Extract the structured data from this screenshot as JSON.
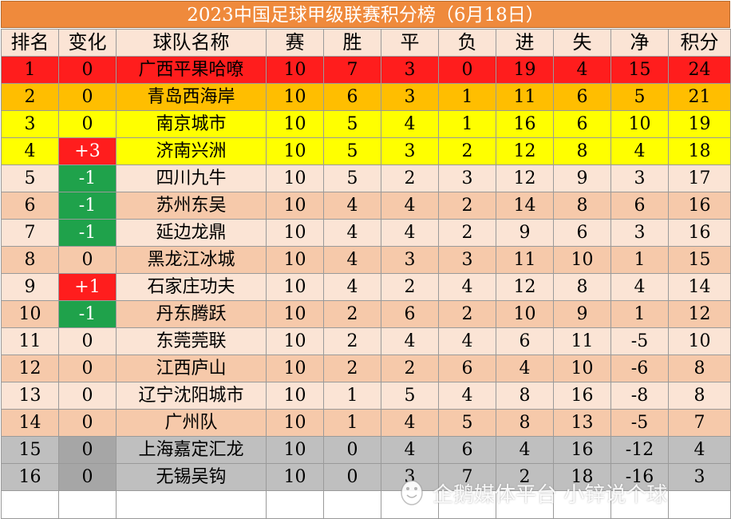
{
  "title": "2023中国足球甲级联赛积分榜（6月18日）",
  "headers": [
    "排名",
    "变化",
    "球队名称",
    "赛",
    "胜",
    "平",
    "负",
    "进",
    "失",
    "净",
    "积分"
  ],
  "rows": [
    {
      "rank": "1",
      "change": "0",
      "team": "广西平果哈嘹",
      "played": "10",
      "won": "7",
      "drawn": "3",
      "lost": "0",
      "gf": "19",
      "ga": "4",
      "gd": "15",
      "pts": "24",
      "row_color": "#ff1d1d",
      "change_color": "#ff1d1d"
    },
    {
      "rank": "2",
      "change": "0",
      "team": "青岛西海岸",
      "played": "10",
      "won": "6",
      "drawn": "3",
      "lost": "1",
      "gf": "11",
      "ga": "6",
      "gd": "5",
      "pts": "21",
      "row_color": "#ffbe00",
      "change_color": "#ffbe00"
    },
    {
      "rank": "3",
      "change": "0",
      "team": "南京城市",
      "played": "10",
      "won": "5",
      "drawn": "4",
      "lost": "1",
      "gf": "16",
      "ga": "6",
      "gd": "10",
      "pts": "19",
      "row_color": "#ffff00",
      "change_color": "#ffff00"
    },
    {
      "rank": "4",
      "change": "+3",
      "team": "济南兴洲",
      "played": "10",
      "won": "5",
      "drawn": "3",
      "lost": "2",
      "gf": "12",
      "ga": "8",
      "gd": "4",
      "pts": "18",
      "row_color": "#ffff00",
      "change_color": "#ff1d1d"
    },
    {
      "rank": "5",
      "change": "-1",
      "team": "四川九牛",
      "played": "10",
      "won": "5",
      "drawn": "2",
      "lost": "3",
      "gf": "12",
      "ga": "9",
      "gd": "3",
      "pts": "17",
      "row_color": "#fbe4d5",
      "change_color": "#1fa24b"
    },
    {
      "rank": "6",
      "change": "-1",
      "team": "苏州东吴",
      "played": "10",
      "won": "4",
      "drawn": "4",
      "lost": "2",
      "gf": "14",
      "ga": "8",
      "gd": "6",
      "pts": "16",
      "row_color": "#f6c9aa",
      "change_color": "#1fa24b"
    },
    {
      "rank": "7",
      "change": "-1",
      "team": "延边龙鼎",
      "played": "10",
      "won": "4",
      "drawn": "4",
      "lost": "2",
      "gf": "9",
      "ga": "6",
      "gd": "3",
      "pts": "16",
      "row_color": "#fbe4d5",
      "change_color": "#1fa24b"
    },
    {
      "rank": "8",
      "change": "0",
      "team": "黑龙江冰城",
      "played": "10",
      "won": "4",
      "drawn": "3",
      "lost": "3",
      "gf": "11",
      "ga": "10",
      "gd": "1",
      "pts": "15",
      "row_color": "#f6c9aa",
      "change_color": "#f6c9aa"
    },
    {
      "rank": "9",
      "change": "+1",
      "team": "石家庄功夫",
      "played": "10",
      "won": "4",
      "drawn": "2",
      "lost": "4",
      "gf": "12",
      "ga": "8",
      "gd": "4",
      "pts": "14",
      "row_color": "#fbe4d5",
      "change_color": "#ff1d1d"
    },
    {
      "rank": "10",
      "change": "-1",
      "team": "丹东腾跃",
      "played": "10",
      "won": "2",
      "drawn": "6",
      "lost": "2",
      "gf": "10",
      "ga": "9",
      "gd": "1",
      "pts": "12",
      "row_color": "#f6c9aa",
      "change_color": "#1fa24b"
    },
    {
      "rank": "11",
      "change": "0",
      "team": "东莞莞联",
      "played": "10",
      "won": "2",
      "drawn": "4",
      "lost": "4",
      "gf": "6",
      "ga": "11",
      "gd": "-5",
      "pts": "10",
      "row_color": "#fbe4d5",
      "change_color": "#fbe4d5"
    },
    {
      "rank": "12",
      "change": "0",
      "team": "江西庐山",
      "played": "10",
      "won": "2",
      "drawn": "2",
      "lost": "6",
      "gf": "4",
      "ga": "10",
      "gd": "-6",
      "pts": "8",
      "row_color": "#f6c9aa",
      "change_color": "#f6c9aa"
    },
    {
      "rank": "13",
      "change": "0",
      "team": "辽宁沈阳城市",
      "played": "10",
      "won": "1",
      "drawn": "5",
      "lost": "4",
      "gf": "8",
      "ga": "16",
      "gd": "-8",
      "pts": "8",
      "row_color": "#fbe4d5",
      "change_color": "#fbe4d5"
    },
    {
      "rank": "14",
      "change": "0",
      "team": "广州队",
      "played": "10",
      "won": "1",
      "drawn": "4",
      "lost": "5",
      "gf": "8",
      "ga": "13",
      "gd": "-5",
      "pts": "7",
      "row_color": "#f6c9aa",
      "change_color": "#f6c9aa"
    },
    {
      "rank": "15",
      "change": "0",
      "team": "上海嘉定汇龙",
      "played": "10",
      "won": "0",
      "drawn": "4",
      "lost": "6",
      "gf": "4",
      "ga": "16",
      "gd": "-12",
      "pts": "4",
      "row_color": "#bfbfbf",
      "change_color": "#a6a6a6"
    },
    {
      "rank": "16",
      "change": "0",
      "team": "无锡吴钩",
      "played": "10",
      "won": "0",
      "drawn": "3",
      "lost": "7",
      "gf": "2",
      "ga": "18",
      "gd": "-16",
      "pts": "3",
      "row_color": "#bfbfbf",
      "change_color": "#a6a6a6"
    }
  ],
  "watermark": {
    "text": "企鹅媒体平台 小锌说个球",
    "icon": "penguin-logo-icon"
  }
}
